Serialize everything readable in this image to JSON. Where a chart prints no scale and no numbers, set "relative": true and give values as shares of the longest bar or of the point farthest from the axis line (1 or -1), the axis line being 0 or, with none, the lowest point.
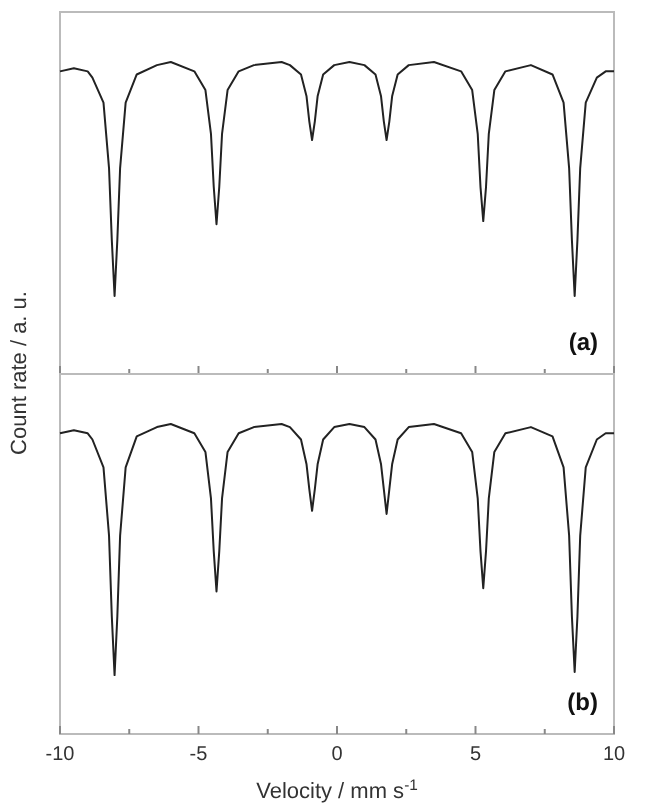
{
  "chart_data": [
    {
      "type": "line",
      "relative": true,
      "ylabel": "Count rate / a. u.",
      "annotations": [
        "(a)"
      ],
      "xlim": [
        -10,
        10
      ],
      "xticks": [
        -10,
        {
          "value": -7.5,
          "label": null
        },
        -5,
        {
          "value": -2.5,
          "label": null
        },
        0,
        {
          "value": 2.5,
          "label": null
        },
        5,
        {
          "value": 7.5,
          "label": null
        },
        10
      ],
      "tick_labels": false,
      "line_style": "solid",
      "x": [
        -10,
        -9.5,
        -9,
        -8.83,
        -8.43,
        -8.23,
        -8.13,
        -8.03,
        -7.93,
        -7.83,
        -7.63,
        -7.23,
        -6.5,
        -6,
        -5.15,
        -4.75,
        -4.55,
        -4.45,
        -4.35,
        -4.25,
        -4.15,
        -3.95,
        -3.55,
        -3,
        -2,
        -1.7,
        -1.3,
        -1.1,
        -1.0,
        -0.9,
        -0.8,
        -0.7,
        -0.5,
        -0.1,
        0.45,
        0.99,
        1.39,
        1.59,
        1.69,
        1.79,
        1.89,
        1.99,
        2.19,
        2.59,
        3.5,
        4.48,
        4.88,
        5.08,
        5.18,
        5.28,
        5.38,
        5.48,
        5.68,
        6.08,
        7,
        7.78,
        8.18,
        8.38,
        8.48,
        8.58,
        8.68,
        8.78,
        8.98,
        9.38,
        9.7,
        10
      ],
      "series": [
        {
          "color": "#222222",
          "values": [
            0.97,
            0.98,
            0.97,
            0.95,
            0.87,
            0.66,
            0.43,
            0.25,
            0.43,
            0.66,
            0.87,
            0.96,
            0.99,
            1.0,
            0.97,
            0.91,
            0.77,
            0.6,
            0.48,
            0.6,
            0.77,
            0.91,
            0.97,
            0.99,
            1.0,
            0.99,
            0.96,
            0.89,
            0.81,
            0.75,
            0.81,
            0.89,
            0.96,
            0.99,
            1.0,
            0.99,
            0.96,
            0.89,
            0.81,
            0.75,
            0.81,
            0.89,
            0.96,
            0.99,
            1.0,
            0.97,
            0.91,
            0.77,
            0.6,
            0.49,
            0.6,
            0.77,
            0.91,
            0.97,
            0.99,
            0.96,
            0.87,
            0.66,
            0.43,
            0.25,
            0.43,
            0.66,
            0.87,
            0.95,
            0.97,
            0.97
          ]
        }
      ]
    },
    {
      "type": "line",
      "relative": true,
      "xlabel": "Velocity / mm s$^{-1}$",
      "annotations": [
        "(b)"
      ],
      "xlim": [
        -10,
        10
      ],
      "xticks": [
        -10,
        {
          "value": -7.5,
          "label": null
        },
        -5,
        {
          "value": -2.5,
          "label": null
        },
        0,
        {
          "value": 2.5,
          "label": null
        },
        5,
        {
          "value": 7.5,
          "label": null
        },
        10
      ],
      "tick_labels": "x",
      "line_style": "solid",
      "x": [
        -10,
        -9.5,
        -9,
        -8.83,
        -8.43,
        -8.23,
        -8.13,
        -8.03,
        -7.93,
        -7.83,
        -7.63,
        -7.23,
        -6.5,
        -6,
        -5.15,
        -4.75,
        -4.55,
        -4.45,
        -4.35,
        -4.25,
        -4.15,
        -3.95,
        -3.55,
        -3,
        -2,
        -1.7,
        -1.3,
        -1.1,
        -1.0,
        -0.9,
        -0.8,
        -0.7,
        -0.5,
        -0.1,
        0.45,
        0.99,
        1.39,
        1.59,
        1.69,
        1.79,
        1.89,
        1.99,
        2.19,
        2.59,
        3.5,
        4.48,
        4.88,
        5.08,
        5.18,
        5.28,
        5.38,
        5.48,
        5.68,
        6.08,
        7,
        7.78,
        8.18,
        8.38,
        8.48,
        8.58,
        8.68,
        8.78,
        8.98,
        9.38,
        9.7,
        10
      ],
      "series": [
        {
          "color": "#222222",
          "values": [
            0.97,
            0.98,
            0.97,
            0.95,
            0.86,
            0.64,
            0.38,
            0.19,
            0.38,
            0.64,
            0.86,
            0.96,
            0.99,
            1.0,
            0.97,
            0.91,
            0.76,
            0.59,
            0.46,
            0.59,
            0.76,
            0.91,
            0.97,
            0.99,
            1.0,
            0.99,
            0.95,
            0.87,
            0.79,
            0.72,
            0.79,
            0.87,
            0.95,
            0.99,
            1.0,
            0.99,
            0.95,
            0.87,
            0.79,
            0.71,
            0.79,
            0.87,
            0.95,
            0.99,
            1.0,
            0.97,
            0.91,
            0.76,
            0.59,
            0.47,
            0.59,
            0.76,
            0.91,
            0.97,
            0.99,
            0.96,
            0.86,
            0.64,
            0.38,
            0.2,
            0.38,
            0.64,
            0.86,
            0.95,
            0.97,
            0.97
          ]
        }
      ]
    }
  ]
}
